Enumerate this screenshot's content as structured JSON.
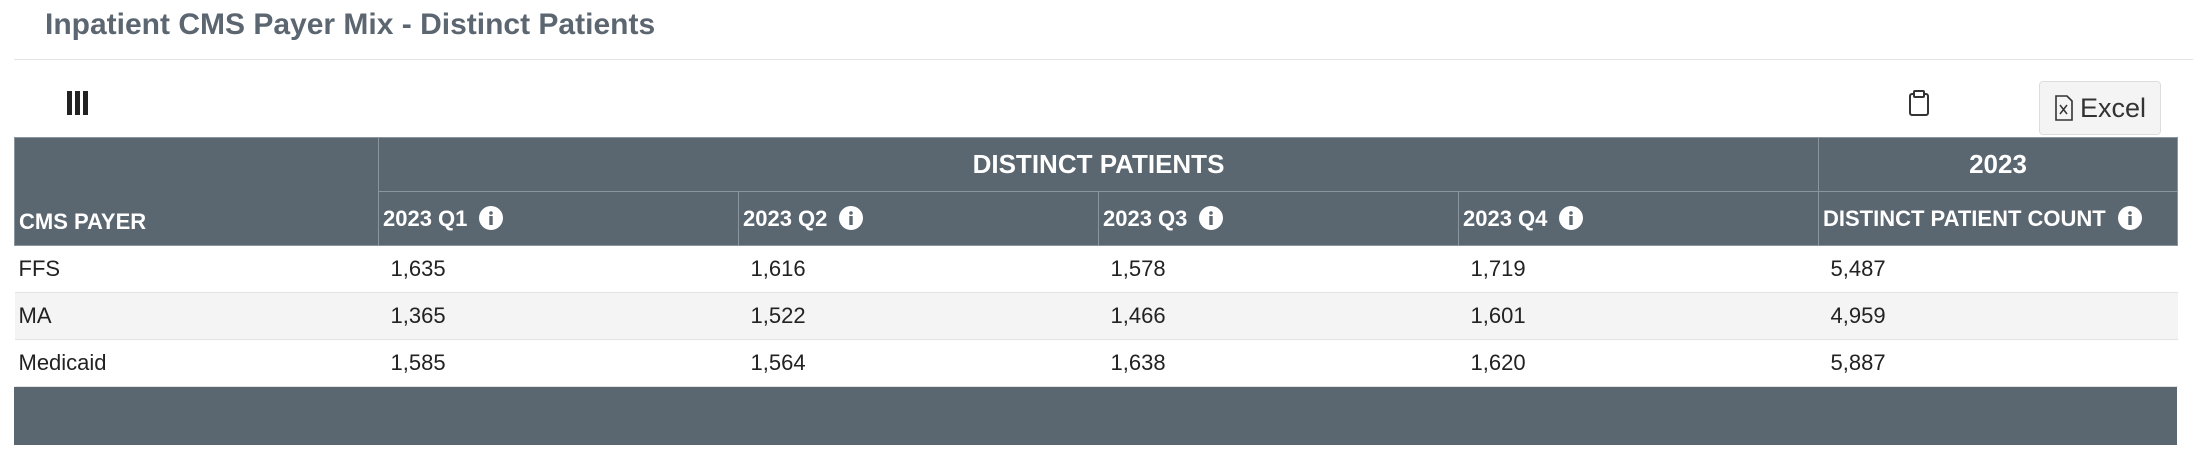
{
  "header": {
    "title": "Inpatient CMS Payer Mix - Distinct Patients"
  },
  "toolbar": {
    "export_button": "Excel"
  },
  "table": {
    "group_headers": [
      "DISTINCT PATIENTS",
      "2023"
    ],
    "columns": [
      "CMS PAYER",
      "2023 Q1",
      "2023 Q2",
      "2023 Q3",
      "2023 Q4",
      "DISTINCT PATIENT COUNT"
    ],
    "rows": [
      [
        "FFS",
        "1,635",
        "1,616",
        "1,578",
        "1,719",
        "5,487"
      ],
      [
        "MA",
        "1,365",
        "1,522",
        "1,466",
        "1,601",
        "4,959"
      ],
      [
        "Medicaid",
        "1,585",
        "1,564",
        "1,638",
        "1,620",
        "5,887"
      ]
    ]
  }
}
